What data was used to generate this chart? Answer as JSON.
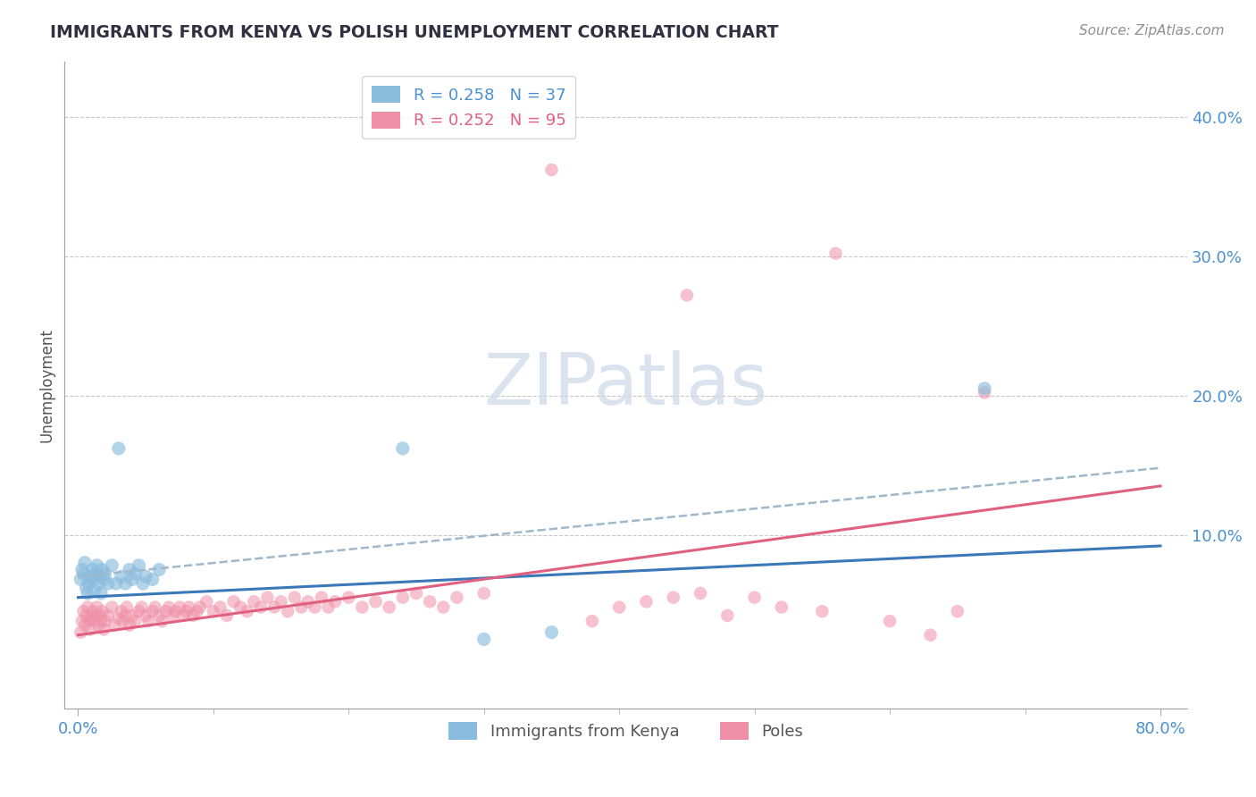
{
  "title": "IMMIGRANTS FROM KENYA VS POLISH UNEMPLOYMENT CORRELATION CHART",
  "source": "Source: ZipAtlas.com",
  "xlabel": "",
  "ylabel": "Unemployment",
  "xlim": [
    -0.01,
    0.82
  ],
  "ylim": [
    -0.025,
    0.44
  ],
  "yticks": [
    0.1,
    0.2,
    0.3,
    0.4
  ],
  "ytick_labels": [
    "10.0%",
    "20.0%",
    "30.0%",
    "40.0%"
  ],
  "series1_color": "#8abcde",
  "series2_color": "#f090a8",
  "series1_line_color": "#3a78b8",
  "series2_line_color": "#e06080",
  "dashed_line_color": "#a0b8cc",
  "watermark_color": "#ccd8e8",
  "kenya_points": [
    [
      0.002,
      0.068
    ],
    [
      0.003,
      0.075
    ],
    [
      0.004,
      0.072
    ],
    [
      0.005,
      0.08
    ],
    [
      0.006,
      0.062
    ],
    [
      0.007,
      0.058
    ],
    [
      0.008,
      0.065
    ],
    [
      0.009,
      0.07
    ],
    [
      0.01,
      0.068
    ],
    [
      0.011,
      0.075
    ],
    [
      0.012,
      0.06
    ],
    [
      0.013,
      0.072
    ],
    [
      0.014,
      0.078
    ],
    [
      0.015,
      0.065
    ],
    [
      0.016,
      0.07
    ],
    [
      0.017,
      0.058
    ],
    [
      0.018,
      0.075
    ],
    [
      0.019,
      0.068
    ],
    [
      0.02,
      0.072
    ],
    [
      0.022,
      0.065
    ],
    [
      0.025,
      0.078
    ],
    [
      0.028,
      0.065
    ],
    [
      0.03,
      0.162
    ],
    [
      0.032,
      0.07
    ],
    [
      0.035,
      0.065
    ],
    [
      0.038,
      0.075
    ],
    [
      0.04,
      0.068
    ],
    [
      0.042,
      0.072
    ],
    [
      0.045,
      0.078
    ],
    [
      0.048,
      0.065
    ],
    [
      0.05,
      0.07
    ],
    [
      0.055,
      0.068
    ],
    [
      0.06,
      0.075
    ],
    [
      0.24,
      0.162
    ],
    [
      0.67,
      0.205
    ],
    [
      0.3,
      0.025
    ],
    [
      0.35,
      0.03
    ]
  ],
  "poles_points": [
    [
      0.002,
      0.03
    ],
    [
      0.003,
      0.038
    ],
    [
      0.004,
      0.045
    ],
    [
      0.005,
      0.035
    ],
    [
      0.006,
      0.042
    ],
    [
      0.007,
      0.048
    ],
    [
      0.008,
      0.038
    ],
    [
      0.009,
      0.032
    ],
    [
      0.01,
      0.04
    ],
    [
      0.011,
      0.045
    ],
    [
      0.012,
      0.038
    ],
    [
      0.013,
      0.042
    ],
    [
      0.014,
      0.048
    ],
    [
      0.015,
      0.035
    ],
    [
      0.016,
      0.042
    ],
    [
      0.017,
      0.038
    ],
    [
      0.018,
      0.045
    ],
    [
      0.019,
      0.032
    ],
    [
      0.02,
      0.038
    ],
    [
      0.022,
      0.042
    ],
    [
      0.025,
      0.048
    ],
    [
      0.027,
      0.035
    ],
    [
      0.03,
      0.04
    ],
    [
      0.032,
      0.045
    ],
    [
      0.033,
      0.038
    ],
    [
      0.035,
      0.042
    ],
    [
      0.036,
      0.048
    ],
    [
      0.038,
      0.035
    ],
    [
      0.04,
      0.042
    ],
    [
      0.042,
      0.038
    ],
    [
      0.045,
      0.045
    ],
    [
      0.047,
      0.048
    ],
    [
      0.05,
      0.042
    ],
    [
      0.052,
      0.038
    ],
    [
      0.055,
      0.045
    ],
    [
      0.057,
      0.048
    ],
    [
      0.06,
      0.042
    ],
    [
      0.062,
      0.038
    ],
    [
      0.065,
      0.045
    ],
    [
      0.067,
      0.048
    ],
    [
      0.07,
      0.042
    ],
    [
      0.072,
      0.045
    ],
    [
      0.075,
      0.048
    ],
    [
      0.078,
      0.042
    ],
    [
      0.08,
      0.045
    ],
    [
      0.082,
      0.048
    ],
    [
      0.085,
      0.042
    ],
    [
      0.088,
      0.045
    ],
    [
      0.09,
      0.048
    ],
    [
      0.095,
      0.052
    ],
    [
      0.1,
      0.045
    ],
    [
      0.105,
      0.048
    ],
    [
      0.11,
      0.042
    ],
    [
      0.115,
      0.052
    ],
    [
      0.12,
      0.048
    ],
    [
      0.125,
      0.045
    ],
    [
      0.13,
      0.052
    ],
    [
      0.135,
      0.048
    ],
    [
      0.14,
      0.055
    ],
    [
      0.145,
      0.048
    ],
    [
      0.15,
      0.052
    ],
    [
      0.155,
      0.045
    ],
    [
      0.16,
      0.055
    ],
    [
      0.165,
      0.048
    ],
    [
      0.17,
      0.052
    ],
    [
      0.175,
      0.048
    ],
    [
      0.18,
      0.055
    ],
    [
      0.185,
      0.048
    ],
    [
      0.19,
      0.052
    ],
    [
      0.2,
      0.055
    ],
    [
      0.21,
      0.048
    ],
    [
      0.22,
      0.052
    ],
    [
      0.23,
      0.048
    ],
    [
      0.24,
      0.055
    ],
    [
      0.25,
      0.058
    ],
    [
      0.26,
      0.052
    ],
    [
      0.27,
      0.048
    ],
    [
      0.28,
      0.055
    ],
    [
      0.3,
      0.058
    ],
    [
      0.35,
      0.362
    ],
    [
      0.38,
      0.038
    ],
    [
      0.4,
      0.048
    ],
    [
      0.42,
      0.052
    ],
    [
      0.44,
      0.055
    ],
    [
      0.45,
      0.272
    ],
    [
      0.46,
      0.058
    ],
    [
      0.48,
      0.042
    ],
    [
      0.5,
      0.055
    ],
    [
      0.52,
      0.048
    ],
    [
      0.55,
      0.045
    ],
    [
      0.56,
      0.302
    ],
    [
      0.6,
      0.038
    ],
    [
      0.63,
      0.028
    ],
    [
      0.65,
      0.045
    ],
    [
      0.67,
      0.202
    ]
  ],
  "trend_kenya": {
    "start_x": 0.0,
    "start_y": 0.055,
    "end_x": 0.8,
    "end_y": 0.092
  },
  "trend_poles": {
    "start_x": 0.0,
    "start_y": 0.028,
    "end_x": 0.8,
    "end_y": 0.135
  },
  "dashed_line": {
    "start_x": 0.0,
    "start_y": 0.07,
    "end_x": 0.8,
    "end_y": 0.148
  }
}
